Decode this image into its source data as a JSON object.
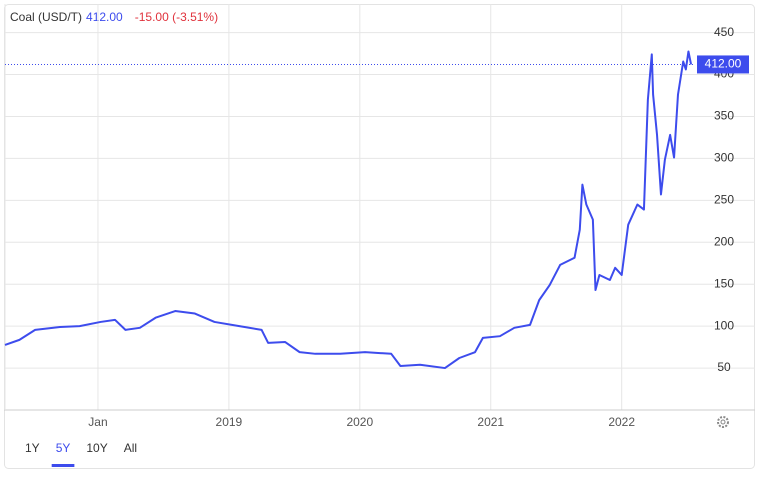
{
  "header": {
    "price": "412.00",
    "change": "-15.00 (-3.51%)"
  },
  "ranges": [
    "1Y",
    "5Y",
    "10Y",
    "All"
  ],
  "selected_range_index": 1,
  "chart_data": {
    "type": "line",
    "x": [
      2017.29,
      2017.4,
      2017.52,
      2017.71,
      2017.86,
      2018.02,
      2018.13,
      2018.21,
      2018.32,
      2018.44,
      2018.59,
      2018.74,
      2018.89,
      2019.08,
      2019.25,
      2019.3,
      2019.43,
      2019.54,
      2019.66,
      2019.85,
      2020.04,
      2020.24,
      2020.31,
      2020.46,
      2020.65,
      2020.76,
      2020.88,
      2020.94,
      2021.07,
      2021.18,
      2021.3,
      2021.37,
      2021.45,
      2021.53,
      2021.64,
      2021.68,
      2021.7,
      2021.73,
      2021.78,
      2021.8,
      2021.83,
      2021.91,
      2021.95,
      2022.0,
      2022.05,
      2022.12,
      2022.17,
      2022.2,
      2022.23,
      2022.24,
      2022.27,
      2022.3,
      2022.33,
      2022.37,
      2022.4,
      2022.43,
      2022.47,
      2022.49,
      2022.51,
      2022.53
    ],
    "series": [
      {
        "name": "Coal (USD/T)",
        "color": "#3d4ced",
        "values": [
          77.6,
          83.6,
          95.5,
          99,
          100,
          105,
          107.5,
          95.5,
          98,
          110,
          118,
          115,
          105,
          100,
          95.5,
          80,
          81,
          69,
          67,
          67,
          69,
          67,
          52.5,
          54,
          50,
          62,
          69,
          86,
          88,
          98,
          101.5,
          131,
          149,
          173,
          181.5,
          215,
          268.7,
          245,
          227,
          143,
          161,
          155,
          169.5,
          161,
          221,
          245,
          239,
          370,
          424,
          376,
          328,
          257,
          298.5,
          328,
          301,
          376,
          415.5,
          406,
          427.5,
          412
        ]
      }
    ],
    "xlim": [
      2017.29,
      2022.56
    ],
    "xticks": [
      {
        "value": 2018,
        "label": "Jan"
      },
      2019,
      2020,
      2021,
      2022
    ],
    "ylim": [
      0,
      465
    ],
    "yticks": [
      50,
      100,
      150,
      200,
      250,
      300,
      350,
      400,
      450
    ],
    "grid": true
  }
}
